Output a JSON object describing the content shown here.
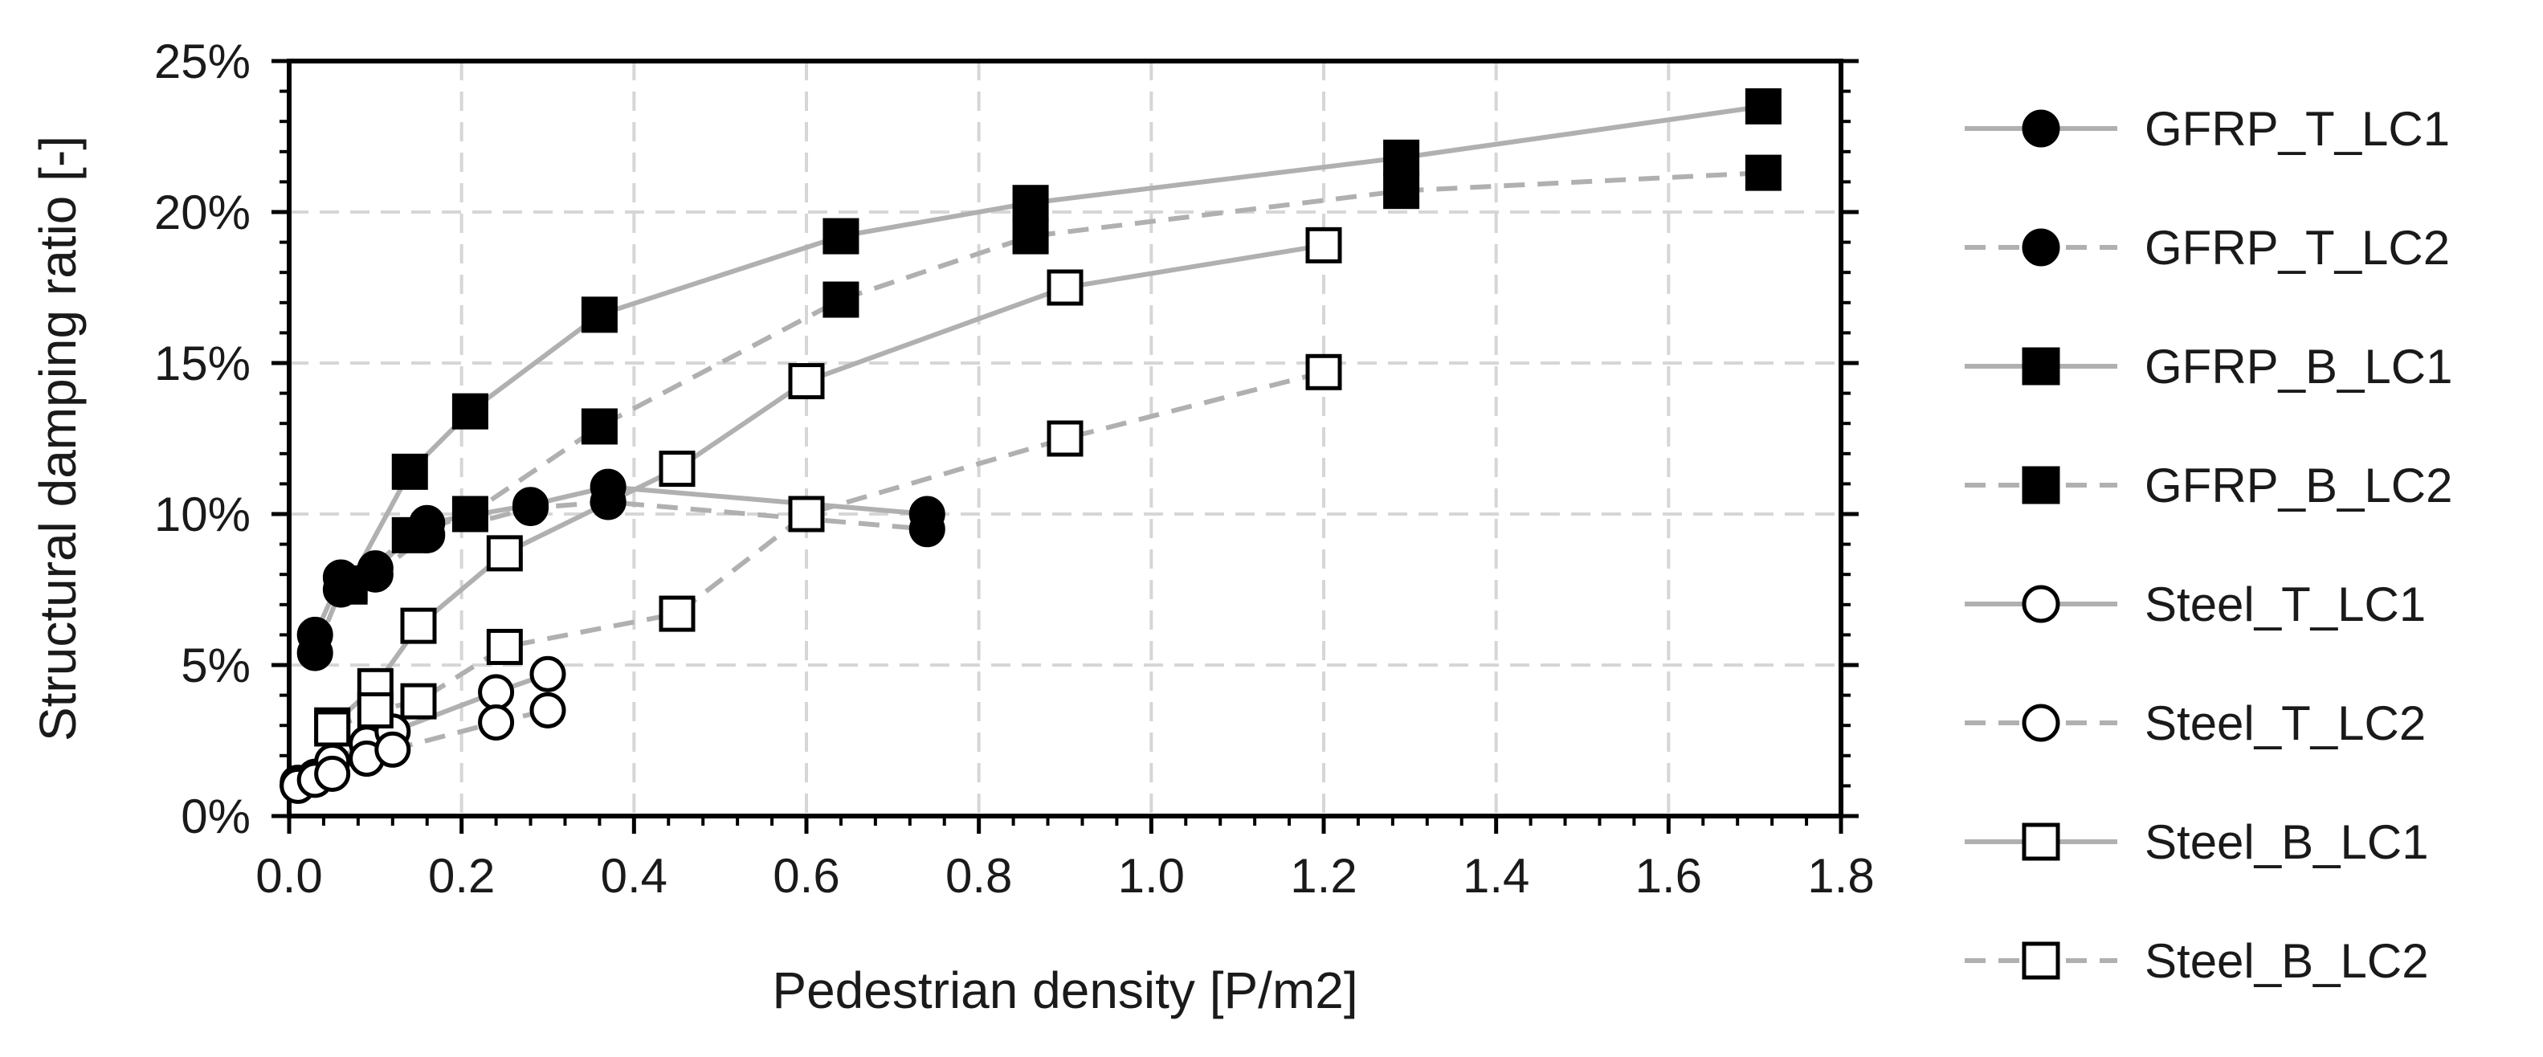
{
  "chart_data": {
    "type": "scatter",
    "title": "",
    "xlabel": "Pedestrian density [P/m2]",
    "ylabel": "Structural damping ratio [-]",
    "xlim": [
      0,
      1.8
    ],
    "ylim": [
      0,
      25
    ],
    "x_ticks": [
      0,
      0.2,
      0.4,
      0.6,
      0.8,
      1.0,
      1.2,
      1.4,
      1.6,
      1.8
    ],
    "x_tick_labels": [
      "0.0",
      "0.2",
      "0.4",
      "0.6",
      "0.8",
      "1.0",
      "1.2",
      "1.4",
      "1.6",
      "1.8"
    ],
    "y_ticks": [
      0,
      5,
      10,
      15,
      20,
      25
    ],
    "y_tick_labels": [
      "0%",
      "5%",
      "10%",
      "15%",
      "20%",
      "25%"
    ],
    "grid": true,
    "legend_position": "right",
    "series": [
      {
        "name": "GFRP_T_LC1",
        "marker": "circle",
        "fill": "#000000",
        "line": "solid",
        "color": "#b0b0b0",
        "x": [
          0.03,
          0.06,
          0.1,
          0.16,
          0.28,
          0.37,
          0.74
        ],
        "y": [
          6.0,
          7.9,
          8.2,
          9.7,
          10.3,
          10.9,
          10.0
        ]
      },
      {
        "name": "GFRP_T_LC2",
        "marker": "circle",
        "fill": "#000000",
        "line": "dashed",
        "color": "#b0b0b0",
        "x": [
          0.03,
          0.06,
          0.1,
          0.16,
          0.28,
          0.37,
          0.74
        ],
        "y": [
          5.4,
          7.5,
          8.0,
          9.3,
          10.2,
          10.4,
          9.5
        ]
      },
      {
        "name": "GFRP_B_LC1",
        "marker": "square",
        "fill": "#000000",
        "line": "solid",
        "color": "#b0b0b0",
        "x": [
          0.07,
          0.14,
          0.21,
          0.36,
          0.64,
          0.86,
          1.29,
          1.71
        ],
        "y": [
          7.7,
          11.4,
          13.4,
          16.6,
          19.2,
          20.3,
          21.8,
          23.5
        ]
      },
      {
        "name": "GFRP_B_LC2",
        "marker": "square",
        "fill": "#000000",
        "line": "dashed",
        "color": "#b0b0b0",
        "x": [
          0.07,
          0.14,
          0.21,
          0.36,
          0.64,
          0.86,
          1.29,
          1.71
        ],
        "y": [
          7.6,
          9.3,
          10.0,
          12.9,
          17.1,
          19.2,
          20.7,
          21.3
        ]
      },
      {
        "name": "Steel_T_LC1",
        "marker": "circle",
        "fill": "#ffffff",
        "line": "solid",
        "color": "#b0b0b0",
        "x": [
          0.01,
          0.03,
          0.05,
          0.09,
          0.12,
          0.24,
          0.3
        ],
        "y": [
          1.1,
          1.3,
          1.8,
          2.4,
          2.8,
          4.1,
          4.7
        ]
      },
      {
        "name": "Steel_T_LC2",
        "marker": "circle",
        "fill": "#ffffff",
        "line": "dashed",
        "color": "#b0b0b0",
        "x": [
          0.01,
          0.03,
          0.05,
          0.09,
          0.12,
          0.24,
          0.3
        ],
        "y": [
          1.0,
          1.2,
          1.4,
          1.9,
          2.2,
          3.1,
          3.5
        ]
      },
      {
        "name": "Steel_B_LC1",
        "marker": "square",
        "fill": "#ffffff",
        "line": "solid",
        "color": "#b0b0b0",
        "x": [
          0.05,
          0.1,
          0.15,
          0.25,
          0.45,
          0.6,
          0.9,
          1.2
        ],
        "y": [
          3.0,
          4.3,
          6.3,
          8.7,
          11.5,
          14.4,
          17.5,
          18.9
        ]
      },
      {
        "name": "Steel_B_LC2",
        "marker": "square",
        "fill": "#ffffff",
        "line": "dashed",
        "color": "#b0b0b0",
        "x": [
          0.05,
          0.1,
          0.15,
          0.25,
          0.45,
          0.6,
          0.9,
          1.2
        ],
        "y": [
          2.9,
          3.5,
          3.8,
          5.6,
          6.7,
          10.0,
          12.5,
          14.7
        ]
      }
    ]
  }
}
